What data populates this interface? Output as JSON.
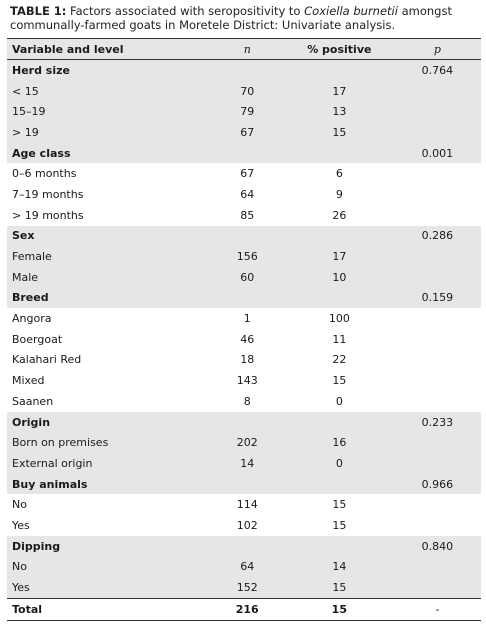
{
  "caption": {
    "label": "TABLE 1:",
    "text_before": " Factors associated with seropositivity to ",
    "organism": "Coxiella burnetii",
    "text_after": " amongst communally-farmed goats in Moretele District: Univariate analysis."
  },
  "headers": {
    "variable": "Variable and level",
    "n": "n",
    "positive": "% positive",
    "p": "p"
  },
  "groups": [
    {
      "name": "Herd size",
      "p": "0.764",
      "rows": [
        {
          "level": "< 15",
          "n": "70",
          "pos": "17"
        },
        {
          "level": "15–19",
          "n": "79",
          "pos": "13"
        },
        {
          "level": "> 19",
          "n": "67",
          "pos": "15"
        }
      ]
    },
    {
      "name": "Age class",
      "p": "0.001",
      "rows": [
        {
          "level": "0–6 months",
          "n": "67",
          "pos": "6"
        },
        {
          "level": "7–19 months",
          "n": "64",
          "pos": "9"
        },
        {
          "level": "> 19 months",
          "n": "85",
          "pos": "26"
        }
      ]
    },
    {
      "name": "Sex",
      "p": "0.286",
      "rows": [
        {
          "level": "Female",
          "n": "156",
          "pos": "17"
        },
        {
          "level": "Male",
          "n": "60",
          "pos": "10"
        }
      ]
    },
    {
      "name": "Breed",
      "p": "0.159",
      "rows": [
        {
          "level": "Angora",
          "n": "1",
          "pos": "100"
        },
        {
          "level": "Boergoat",
          "n": "46",
          "pos": "11"
        },
        {
          "level": "Kalahari Red",
          "n": "18",
          "pos": "22"
        },
        {
          "level": "Mixed",
          "n": "143",
          "pos": "15"
        },
        {
          "level": "Saanen",
          "n": "8",
          "pos": "0"
        }
      ]
    },
    {
      "name": "Origin",
      "p": "0.233",
      "rows": [
        {
          "level": "Born on premises",
          "n": "202",
          "pos": "16"
        },
        {
          "level": "External origin",
          "n": "14",
          "pos": "0"
        }
      ]
    },
    {
      "name": "Buy animals",
      "p": "0.966",
      "rows": [
        {
          "level": "No",
          "n": "114",
          "pos": "15"
        },
        {
          "level": "Yes",
          "n": "102",
          "pos": "15"
        }
      ]
    },
    {
      "name": "Dipping",
      "p": "0.840",
      "rows": [
        {
          "level": "No",
          "n": "64",
          "pos": "14"
        },
        {
          "level": "Yes",
          "n": "152",
          "pos": "15"
        }
      ]
    }
  ],
  "total": {
    "label": "Total",
    "n": "216",
    "pos": "15",
    "p": "-"
  }
}
